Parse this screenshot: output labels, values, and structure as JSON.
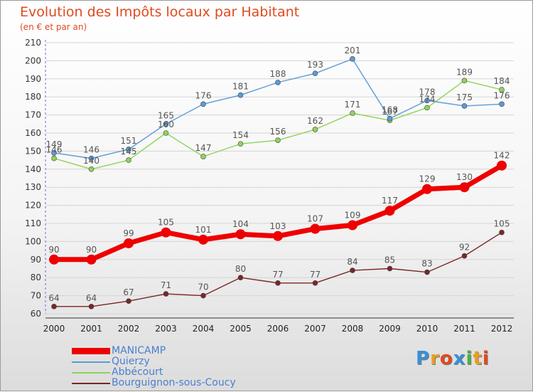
{
  "header": {
    "title": "Evolution des Impôts locaux par Habitant",
    "subtitle": "(en € et par an)"
  },
  "logo": {
    "text": "Proxiti",
    "colors": [
      "#3a8fd8",
      "#e8a020",
      "#e04a1f",
      "#3a8fd8",
      "#4ab040",
      "#e8a020",
      "#e04a1f"
    ]
  },
  "chart_data": {
    "type": "line",
    "title": "Evolution des Impôts locaux par Habitant",
    "subtitle": "(en € et par an)",
    "xlabel": "",
    "ylabel": "",
    "categories": [
      "2000",
      "2001",
      "2002",
      "2003",
      "2004",
      "2005",
      "2006",
      "2007",
      "2008",
      "2009",
      "2010",
      "2011",
      "2012"
    ],
    "ylim": [
      60,
      210
    ],
    "yticks": [
      60,
      70,
      80,
      90,
      100,
      110,
      120,
      130,
      140,
      150,
      160,
      170,
      180,
      190,
      200,
      210
    ],
    "grid": "horizontal",
    "legend_position": "bottom-left",
    "series": [
      {
        "name": "MANICAMP",
        "color": "#ee0000",
        "values": [
          90,
          90,
          99,
          105,
          101,
          104,
          103,
          107,
          109,
          117,
          129,
          130,
          142
        ]
      },
      {
        "name": "Quierzy",
        "color": "#5b9bd5",
        "values": [
          149,
          146,
          151,
          165,
          176,
          181,
          188,
          193,
          201,
          168,
          178,
          175,
          176
        ]
      },
      {
        "name": "Abbécourt",
        "color": "#8fd35a",
        "values": [
          146,
          140,
          145,
          160,
          147,
          154,
          156,
          162,
          171,
          167,
          174,
          189,
          184
        ]
      },
      {
        "name": "Bourguignon-sous-Coucy",
        "color": "#7a2626",
        "values": [
          64,
          64,
          67,
          71,
          70,
          80,
          77,
          77,
          84,
          85,
          83,
          92,
          105
        ]
      }
    ]
  }
}
